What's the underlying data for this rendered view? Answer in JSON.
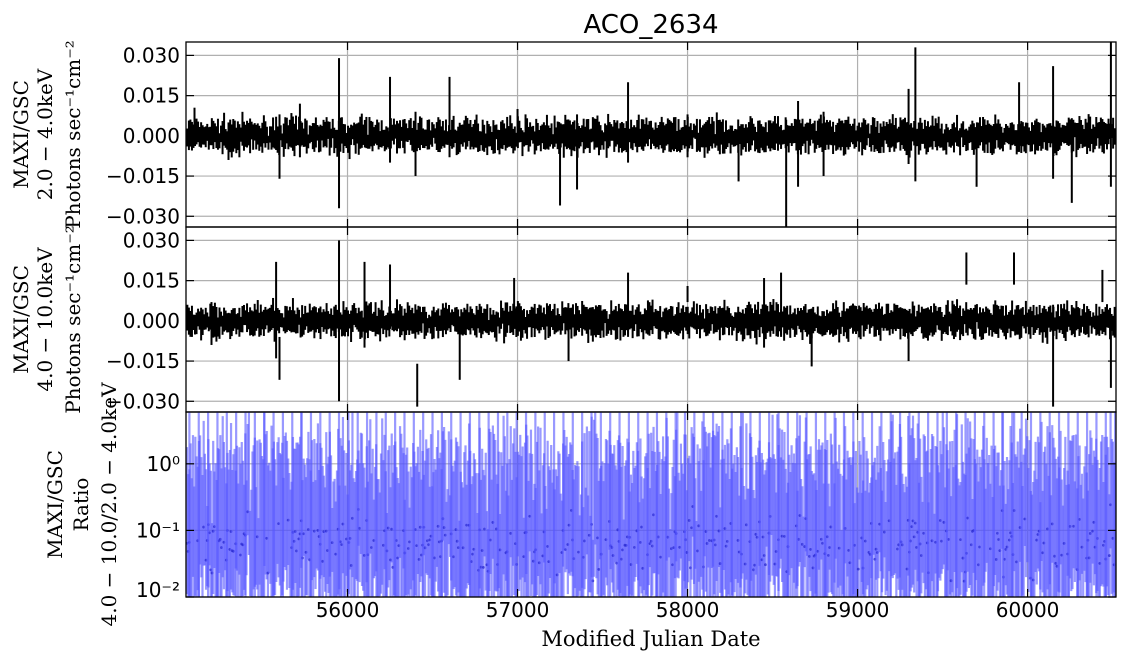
{
  "chart_data": {
    "type": "scatter",
    "title": "ACO_2634",
    "xlabel": "Modified Julian Date",
    "xlim": [
      55050,
      60520
    ],
    "x_ticks": [
      56000,
      57000,
      58000,
      59000,
      60000
    ],
    "x_tick_labels": [
      "56000",
      "57000",
      "58000",
      "59000",
      "60000"
    ],
    "grid": true,
    "panels": [
      {
        "id": "soft",
        "ylabel": [
          "MAXI/GSC",
          "2.0 − 4.0keV",
          "Photons sec⁻¹cm⁻²"
        ],
        "ylim": [
          -0.034,
          0.035
        ],
        "yscale": "linear",
        "y_ticks": [
          0.03,
          0.015,
          0.0,
          -0.015,
          -0.03
        ],
        "y_tick_labels": [
          "0.030",
          "0.015",
          "0.000",
          "−0.015",
          "−0.030"
        ],
        "points": [
          [
            55100,
            0.0045,
            0.006
          ],
          [
            55300,
            -0.002,
            0.007
          ],
          [
            55600,
            -0.004,
            0.012
          ],
          [
            55720,
            0.002,
            0.01
          ],
          [
            55950,
            0.001,
            0.028
          ],
          [
            56250,
            0.006,
            0.016
          ],
          [
            56400,
            -0.003,
            0.012
          ],
          [
            56600,
            0.007,
            0.015
          ],
          [
            57000,
            0.004,
            0.006
          ],
          [
            57250,
            -0.013,
            0.013
          ],
          [
            57350,
            -0.006,
            0.014
          ],
          [
            57650,
            0.005,
            0.015
          ],
          [
            58000,
            0.0,
            0.008
          ],
          [
            58300,
            -0.009,
            0.008
          ],
          [
            58580,
            -0.014,
            0.02
          ],
          [
            58650,
            -0.003,
            0.016
          ],
          [
            58800,
            -0.003,
            0.012
          ],
          [
            59300,
            0.0035,
            0.014
          ],
          [
            59340,
            0.008,
            0.025
          ],
          [
            59700,
            -0.009,
            0.01
          ],
          [
            59950,
            0.007,
            0.013
          ],
          [
            60150,
            0.005,
            0.021
          ],
          [
            60260,
            -0.012,
            0.013
          ],
          [
            60490,
            0.009,
            0.028
          ]
        ]
      },
      {
        "id": "hard",
        "ylabel": [
          "MAXI/GSC",
          "4.0 − 10.0keV",
          "Photons sec⁻¹cm⁻²"
        ],
        "ylim": [
          -0.034,
          0.035
        ],
        "yscale": "linear",
        "y_ticks": [
          0.03,
          0.015,
          0.0,
          -0.015,
          -0.03
        ],
        "y_tick_labels": [
          "0.030",
          "0.015",
          "0.000",
          "−0.015",
          "−0.030"
        ],
        "points": [
          [
            55200,
            -0.001,
            0.008
          ],
          [
            55580,
            0.004,
            0.018
          ],
          [
            55600,
            -0.014,
            0.008
          ],
          [
            55950,
            0.0,
            0.03
          ],
          [
            56100,
            0.006,
            0.016
          ],
          [
            56250,
            0.009,
            0.012
          ],
          [
            56410,
            -0.024,
            0.008
          ],
          [
            56660,
            -0.011,
            0.011
          ],
          [
            56980,
            0.008,
            0.008
          ],
          [
            57300,
            -0.008,
            0.007
          ],
          [
            57650,
            0.006,
            0.012
          ],
          [
            58000,
            0.01,
            0.003
          ],
          [
            58450,
            0.003,
            0.013
          ],
          [
            58550,
            0.006,
            0.012
          ],
          [
            58730,
            -0.01,
            0.007
          ],
          [
            59300,
            -0.008,
            0.007
          ],
          [
            59640,
            0.0195,
            0.006
          ],
          [
            59920,
            0.0195,
            0.006
          ],
          [
            60150,
            -0.013,
            0.019
          ],
          [
            60440,
            0.013,
            0.006
          ],
          [
            60490,
            -0.012,
            0.013
          ]
        ]
      },
      {
        "id": "ratio",
        "ylabel": [
          "MAXI/GSC",
          "Ratio",
          "4.0 − 10.0/2.0 − 4.0keV"
        ],
        "ylim": [
          0.01,
          6.0
        ],
        "yscale": "log",
        "y_ticks": [
          1,
          0.1,
          0.01
        ],
        "y_tick_labels": [
          "10⁰",
          "10⁻¹",
          "10⁻²"
        ],
        "points": "dense ratio error bars spanning 10⁻² to above 10⁰ across the full date range"
      }
    ]
  }
}
